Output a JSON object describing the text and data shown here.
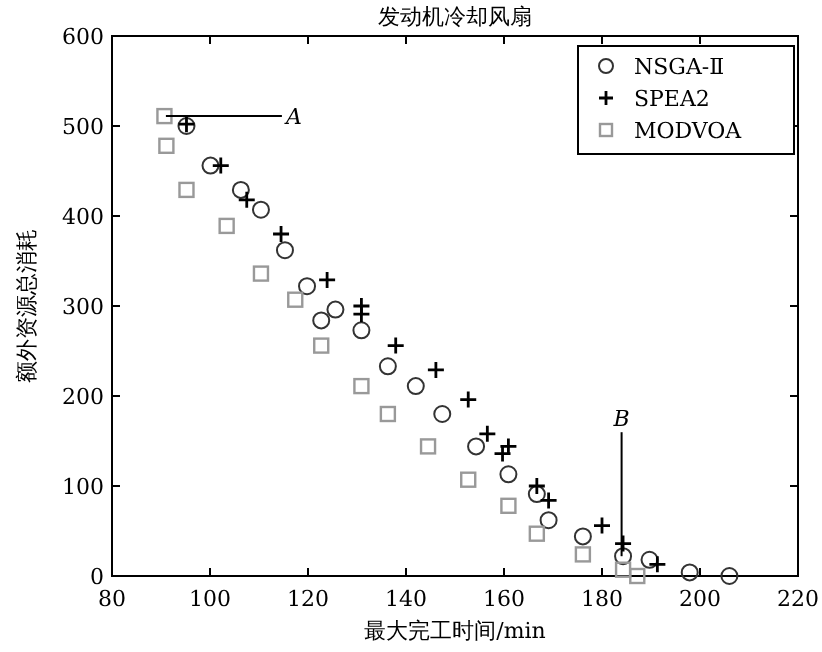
{
  "chart_data": {
    "type": "scatter",
    "title": "发动机冷却风扇",
    "xlabel": "最大完工时间/min",
    "ylabel": "额外资源总消耗",
    "xlim": [
      80,
      220
    ],
    "ylim": [
      0,
      600
    ],
    "xticks": [
      80,
      100,
      120,
      140,
      160,
      180,
      200,
      220
    ],
    "yticks": [
      0,
      100,
      200,
      300,
      400,
      500,
      600
    ],
    "grid": false,
    "legend": "top right",
    "annotations": [
      {
        "text": "A",
        "x": 91,
        "y": 511
      },
      {
        "text": "B",
        "x": 184,
        "y": 22
      }
    ],
    "series": [
      {
        "name": "NSGA-Ⅱ",
        "color": "#333333",
        "marker": "circle",
        "x": [
          95.2,
          100.1,
          106.3,
          110.4,
          115.3,
          119.8,
          122.7,
          125.6,
          130.9,
          136.3,
          142,
          147.4,
          154.3,
          160.9,
          166.7,
          169.1,
          176.1,
          184.3,
          189.7,
          197.9,
          206
        ],
        "values": [
          500,
          456,
          429,
          407,
          362,
          322,
          284,
          296,
          273,
          233,
          211,
          180,
          144,
          113,
          91,
          62,
          44,
          22,
          18,
          4,
          0
        ]
      },
      {
        "name": "SPEA2",
        "color": "#000000",
        "marker": "cross",
        "x": [
          95.2,
          102.2,
          107.5,
          114.5,
          123.9,
          130.9,
          130.9,
          137.9,
          146.1,
          152.7,
          156.6,
          159.7,
          160.9,
          166.7,
          169.1,
          180,
          184.3,
          191.3
        ],
        "values": [
          502,
          456,
          418,
          380,
          329,
          291,
          300,
          256,
          229,
          196,
          158,
          136,
          144,
          100,
          84,
          56,
          36,
          13
        ]
      },
      {
        "name": "MODVOA",
        "color": "#999999",
        "marker": "square",
        "x": [
          90.7,
          91.1,
          95.2,
          103.4,
          110.4,
          117.4,
          122.7,
          130.9,
          136.3,
          144.5,
          152.7,
          160.9,
          166.7,
          176.1,
          184.3,
          187.2
        ],
        "values": [
          511,
          478,
          429,
          389,
          336,
          307,
          256,
          211,
          180,
          144,
          107,
          78,
          47,
          24,
          7,
          0
        ]
      }
    ]
  }
}
